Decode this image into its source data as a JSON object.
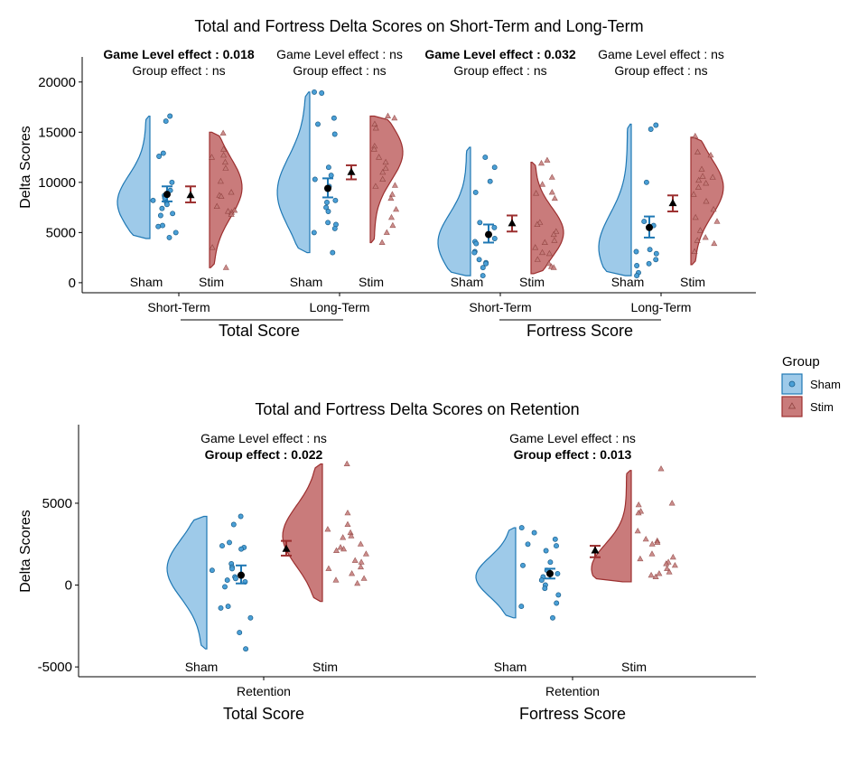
{
  "colors": {
    "sham_fill": "#9ecae9",
    "sham_line": "#1f78b4",
    "stim_fill": "#c97b7b",
    "stim_line": "#9c2f2f",
    "sham_point": "#4a9fd6",
    "stim_point": "#c27a78"
  },
  "legend": {
    "title": "Group",
    "items": [
      {
        "label": "Sham",
        "marker": "circle"
      },
      {
        "label": "Stim",
        "marker": "triangle"
      }
    ],
    "position": "right"
  },
  "chart_data": [
    {
      "type": "raincloud",
      "title": "Total and Fortress Delta Scores on Short-Term and Long-Term",
      "ylabel": "Delta Scores",
      "yticks": [
        0,
        5000,
        10000,
        15000,
        20000
      ],
      "ylim": [
        -1000,
        22500
      ],
      "group_labels": [
        "Sham",
        "Stim"
      ],
      "panels": [
        {
          "condition": "Short-Term",
          "score": "Total Score",
          "annotation": [
            "Game Level effect : 0.018",
            "Group effect : ns"
          ],
          "bold": [
            true,
            false
          ],
          "sham": {
            "mean": 8800,
            "err": [
              8100,
              9600
            ],
            "min": 4400,
            "max": 16600,
            "peak": 8000,
            "points": [
              16600,
              16100,
              12900,
              12600,
              10000,
              9200,
              8700,
              8500,
              8400,
              8200,
              8000,
              7800,
              7400,
              6900,
              6700,
              5700,
              5600,
              5000,
              4500
            ]
          },
          "stim": {
            "mean": 8700,
            "err": [
              8000,
              9600
            ],
            "min": 1500,
            "max": 15000,
            "peak": 9500,
            "points": [
              14900,
              13300,
              12700,
              12500,
              12000,
              11400,
              10100,
              9000,
              8700,
              8600,
              7600,
              7200,
              7100,
              7000,
              6800,
              3500,
              1500
            ]
          }
        },
        {
          "condition": "Long-Term",
          "score": "Total Score",
          "annotation": [
            "Game Level effect : ns",
            "Group effect : ns"
          ],
          "bold": [
            false,
            false
          ],
          "sham": {
            "mean": 9400,
            "err": [
              8500,
              10400
            ],
            "min": 3000,
            "max": 19000,
            "peak": 9000,
            "points": [
              19000,
              18900,
              16400,
              15800,
              14800,
              11500,
              10700,
              10300,
              9600,
              8200,
              8000,
              7500,
              7100,
              6000,
              5800,
              5400,
              5000,
              3000
            ]
          },
          "stim": {
            "mean": 11000,
            "err": [
              10300,
              11700
            ],
            "min": 4000,
            "max": 16600,
            "peak": 13000,
            "points": [
              16600,
              16400,
              15800,
              15400,
              13600,
              13300,
              12500,
              12000,
              11400,
              11000,
              10300,
              9700,
              9600,
              8800,
              8400,
              7300,
              6500,
              5700,
              5000,
              4000
            ]
          }
        },
        {
          "condition": "Short-Term",
          "score": "Fortress Score",
          "annotation": [
            "Game Level effect : 0.032",
            "Group effect : ns"
          ],
          "bold": [
            true,
            false
          ],
          "sham": {
            "mean": 4800,
            "err": [
              4000,
              5800
            ],
            "min": 700,
            "max": 13500,
            "peak": 4000,
            "points": [
              12500,
              11500,
              10100,
              9000,
              6000,
              5500,
              4800,
              4400,
              4100,
              3900,
              3100,
              3000,
              2300,
              2000,
              1900,
              1500,
              700
            ]
          },
          "stim": {
            "mean": 5900,
            "err": [
              5100,
              6700
            ],
            "min": 900,
            "max": 12000,
            "peak": 5000,
            "points": [
              12200,
              11900,
              10500,
              9800,
              9000,
              8900,
              8400,
              6000,
              5800,
              5100,
              4800,
              4200,
              4000,
              3500,
              3000,
              2900,
              2300,
              1900,
              1600,
              1500
            ]
          }
        },
        {
          "condition": "Long-Term",
          "score": "Fortress Score",
          "annotation": [
            "Game Level effect : ns",
            "Group effect : ns"
          ],
          "bold": [
            false,
            false
          ],
          "sham": {
            "mean": 5500,
            "err": [
              4500,
              6600
            ],
            "min": 700,
            "max": 15800,
            "peak": 3500,
            "points": [
              15700,
              15300,
              10000,
              6100,
              5700,
              3300,
              3100,
              2900,
              2300,
              1900,
              1700,
              1000,
              700
            ]
          },
          "stim": {
            "mean": 7900,
            "err": [
              7100,
              8700
            ],
            "min": 1800,
            "max": 14500,
            "peak": 9500,
            "points": [
              14600,
              13000,
              12700,
              11300,
              10600,
              10500,
              10200,
              9900,
              9500,
              8800,
              8100,
              7300,
              6500,
              6100,
              5200,
              4500,
              4200,
              3900,
              3100
            ]
          }
        }
      ],
      "x_sublabels": [
        "Short-Term",
        "Long-Term",
        "Short-Term",
        "Long-Term"
      ],
      "facet_labels": [
        "Total Score",
        "Fortress Score"
      ]
    },
    {
      "type": "raincloud",
      "title": "Total and Fortress Delta Scores on Retention",
      "ylabel": "Delta Scores",
      "yticks": [
        -5000,
        0,
        5000
      ],
      "ylim": [
        -5600,
        9800
      ],
      "group_labels": [
        "Sham",
        "Stim"
      ],
      "panels": [
        {
          "condition": "Retention",
          "score": "Total Score",
          "annotation": [
            "Game Level effect : ns",
            "Group effect : 0.022"
          ],
          "bold": [
            false,
            true
          ],
          "sham": {
            "mean": 600,
            "err": [
              100,
              1200
            ],
            "min": -3900,
            "max": 4200,
            "peak": 1000,
            "points": [
              4200,
              3700,
              2600,
              2400,
              2300,
              2200,
              1300,
              1100,
              1000,
              900,
              500,
              400,
              300,
              200,
              -100,
              -1300,
              -1400,
              -2000,
              -2900,
              -3900
            ]
          },
          "stim": {
            "mean": 2200,
            "err": [
              1800,
              2700
            ],
            "min": -1000,
            "max": 7400,
            "peak": 3000,
            "points": [
              7400,
              4400,
              3700,
              3400,
              3200,
              3000,
              2900,
              2500,
              2300,
              2200,
              2100,
              1900,
              1500,
              1400,
              1100,
              1000,
              700,
              400,
              300,
              100
            ]
          }
        },
        {
          "condition": "Retention",
          "score": "Fortress Score",
          "annotation": [
            "Game Level effect : ns",
            "Group effect : 0.013"
          ],
          "bold": [
            false,
            true
          ],
          "sham": {
            "mean": 700,
            "err": [
              400,
              1000
            ],
            "min": -2000,
            "max": 3500,
            "peak": 500,
            "points": [
              3500,
              3200,
              2800,
              2500,
              2400,
              2100,
              1400,
              1200,
              900,
              700,
              500,
              300,
              0,
              -200,
              -600,
              -1100,
              -1300,
              -2000
            ]
          },
          "stim": {
            "mean": 2100,
            "err": [
              1700,
              2400
            ],
            "min": 200,
            "max": 7000,
            "peak": 1000,
            "points": [
              7100,
              5000,
              4900,
              4500,
              4400,
              3300,
              2800,
              2700,
              2600,
              2500,
              1900,
              1700,
              1600,
              1400,
              1300,
              1200,
              1000,
              800,
              700,
              600,
              500
            ]
          }
        }
      ],
      "x_sublabels": [
        "Retention",
        "Retention"
      ],
      "facet_labels": [
        "Total Score",
        "Fortress Score"
      ]
    }
  ]
}
